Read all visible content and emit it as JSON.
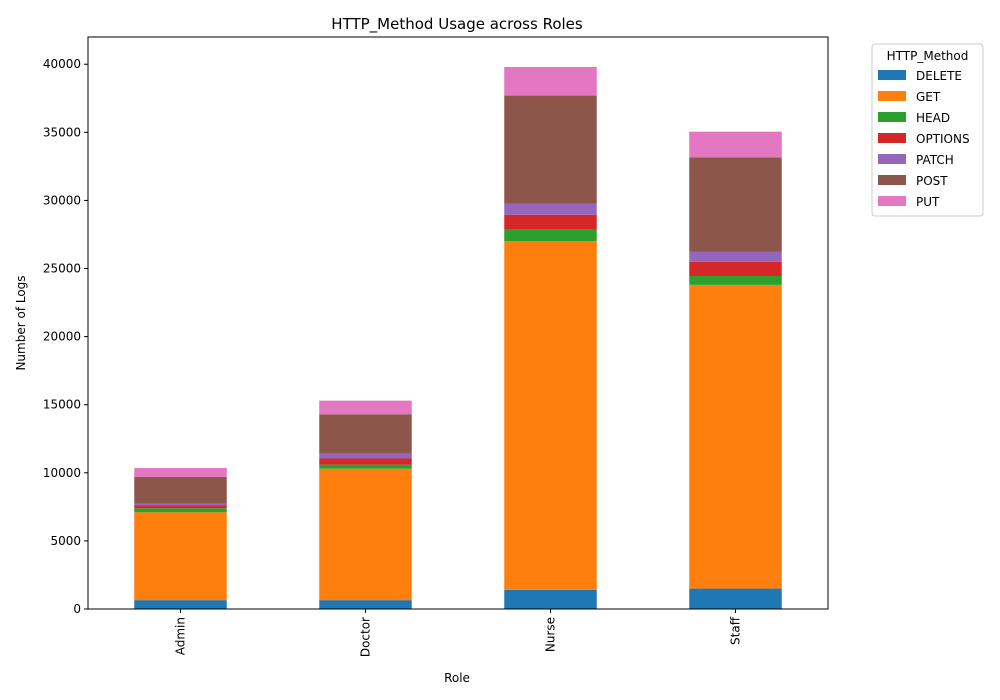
{
  "chart_data": {
    "type": "bar",
    "stacked": true,
    "title": "HTTP_Method Usage across Roles",
    "xlabel": "Role",
    "ylabel": "Number of Logs",
    "categories": [
      "Admin",
      "Doctor",
      "Nurse",
      "Staff"
    ],
    "ylim": [
      0,
      42000
    ],
    "yticks": [
      0,
      5000,
      10000,
      15000,
      20000,
      25000,
      30000,
      35000,
      40000
    ],
    "legend_title": "HTTP_Method",
    "legend_position": "outside-right",
    "series": [
      {
        "name": "DELETE",
        "color": "#1f77b4",
        "values": [
          650,
          650,
          1400,
          1500
        ]
      },
      {
        "name": "GET",
        "color": "#ff7f0e",
        "values": [
          6450,
          9650,
          25600,
          22300
        ]
      },
      {
        "name": "HEAD",
        "color": "#2ca02c",
        "values": [
          300,
          300,
          850,
          650
        ]
      },
      {
        "name": "OPTIONS",
        "color": "#d62728",
        "values": [
          200,
          450,
          1100,
          1050
        ]
      },
      {
        "name": "PATCH",
        "color": "#9467bd",
        "values": [
          150,
          350,
          800,
          750
        ]
      },
      {
        "name": "POST",
        "color": "#8c564b",
        "values": [
          1950,
          2900,
          7950,
          6900
        ]
      },
      {
        "name": "PUT",
        "color": "#e377c2",
        "values": [
          650,
          1000,
          2100,
          1900
        ]
      }
    ]
  }
}
